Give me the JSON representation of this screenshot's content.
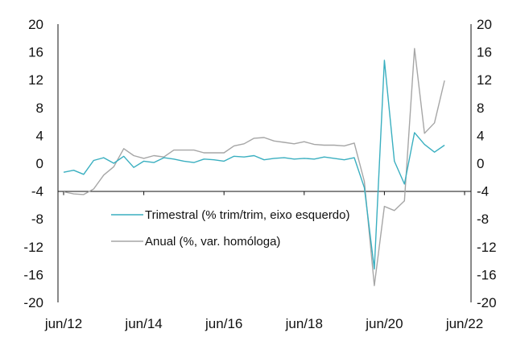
{
  "chart_data": {
    "type": "line",
    "title": "",
    "xlabel": "",
    "ylabel": "",
    "ylim": [
      -20,
      20
    ],
    "yticks": [
      20,
      16,
      12,
      8,
      4,
      0,
      -4,
      -8,
      -12,
      -16,
      -20
    ],
    "ytick_labels": [
      "20",
      "16",
      "12",
      "8",
      "4",
      "0",
      "-4",
      "-8",
      "-12",
      "-16",
      "-20"
    ],
    "x_tick_labels": [
      "jun/12",
      "jun/14",
      "jun/16",
      "jun/18",
      "jun/20",
      "jun/22"
    ],
    "x_tick_index": [
      0,
      8,
      16,
      24,
      32,
      40
    ],
    "legend_position": "center-left",
    "series": [
      {
        "name": "Trimestral (% trim/trim, eixo esquerdo)",
        "axis": "left",
        "color": "#3AAFC0",
        "values": [
          -1.3,
          -1.0,
          -1.6,
          0.4,
          0.8,
          0.0,
          1.0,
          -0.6,
          0.3,
          0.1,
          0.8,
          0.6,
          0.3,
          0.1,
          0.6,
          0.5,
          0.3,
          1.0,
          0.9,
          1.1,
          0.5,
          0.7,
          0.8,
          0.6,
          0.7,
          0.6,
          0.9,
          0.7,
          0.5,
          0.8,
          -3.5,
          -15.2,
          14.8,
          0.3,
          -3.0,
          4.4,
          2.7,
          1.6,
          2.6
        ]
      },
      {
        "name": "Anual (%, var. homóloga)",
        "axis": "right",
        "color": "#A6A6A6",
        "values": [
          -4.1,
          -4.4,
          -4.5,
          -3.7,
          -1.7,
          -0.5,
          2.1,
          1.1,
          0.7,
          1.1,
          0.9,
          1.9,
          1.9,
          1.9,
          1.5,
          1.5,
          1.5,
          2.5,
          2.8,
          3.6,
          3.7,
          3.2,
          3.0,
          2.8,
          3.1,
          2.7,
          2.6,
          2.6,
          2.5,
          2.9,
          -2.6,
          -17.6,
          -6.2,
          -6.8,
          -5.4,
          16.5,
          4.3,
          5.8,
          11.9
        ]
      }
    ]
  }
}
